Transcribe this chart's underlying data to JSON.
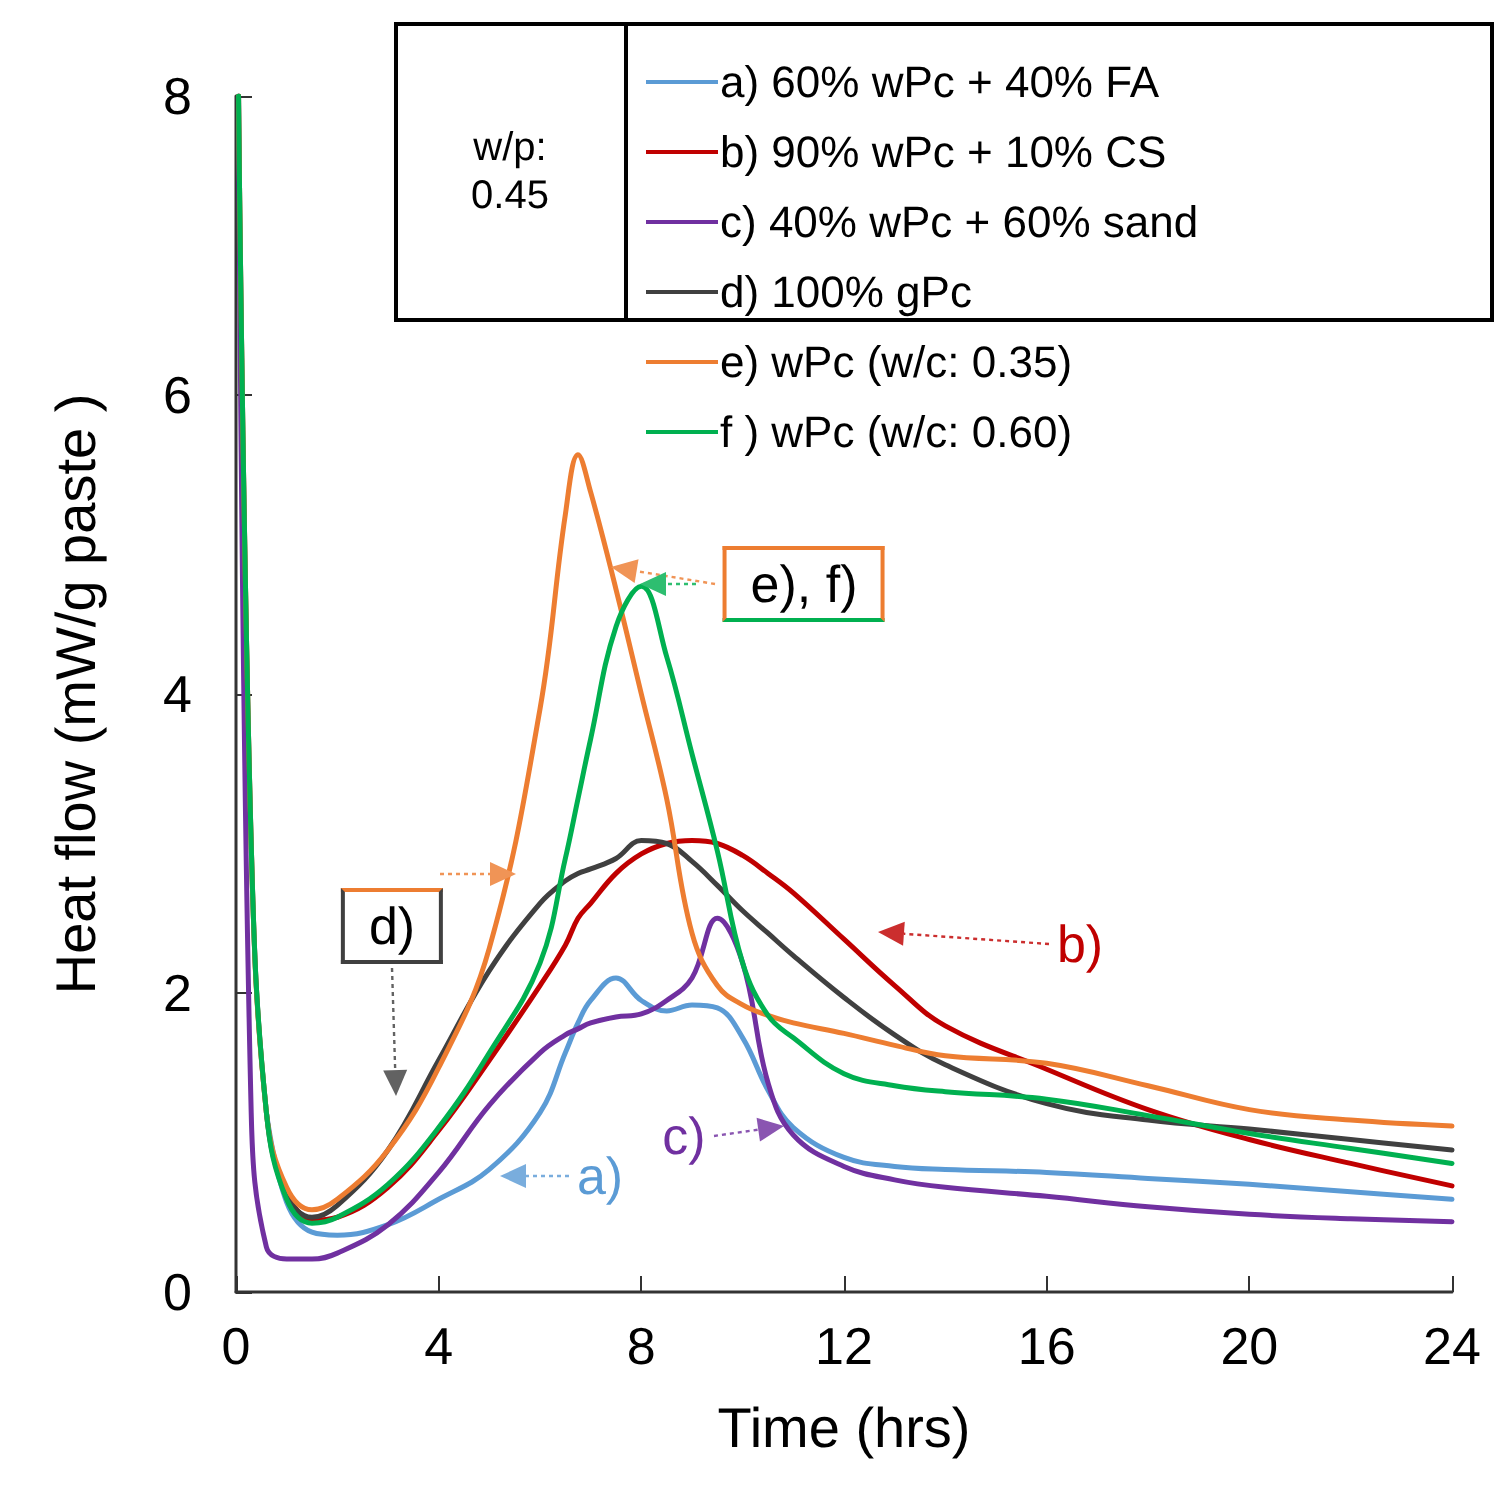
{
  "chart_data": {
    "type": "line",
    "xlabel": "Time (hrs)",
    "ylabel": "Heat flow (mW/g paste )",
    "legend_title": "w/p: 0.45",
    "legend": "top right",
    "grid": false,
    "marker": "none",
    "line_style": "solid",
    "x": [
      0.05,
      0.3,
      0.6,
      1,
      1.5,
      2,
      3,
      4,
      5,
      6,
      6.5,
      6.75,
      7,
      7.5,
      8,
      8.5,
      9,
      9.5,
      10,
      10.5,
      11,
      12,
      13,
      14,
      16,
      18,
      20,
      22,
      24
    ],
    "xlim": [
      0,
      24
    ],
    "xticks": [
      0,
      4,
      8,
      12,
      16,
      20,
      24
    ],
    "ylim": [
      0,
      8
    ],
    "yticks": [
      0,
      2,
      4,
      6,
      8
    ],
    "series": [
      {
        "name": "a) 60% wPc + 40% FA",
        "color": "#5b9bd5",
        "values": [
          null,
          null,
          1.2,
          0.6,
          0.4,
          0.38,
          0.45,
          0.62,
          0.82,
          1.2,
          1.6,
          1.8,
          1.95,
          2.1,
          1.95,
          1.88,
          1.92,
          1.9,
          1.7,
          1.35,
          1.1,
          0.9,
          0.84,
          0.82,
          0.8,
          0.76,
          0.72,
          0.67,
          0.62
        ]
      },
      {
        "name": "b) 90% wPc + 10% CS",
        "color": "#c00000",
        "values": [
          null,
          null,
          null,
          0.65,
          0.48,
          0.5,
          0.7,
          1.08,
          1.55,
          2.05,
          2.32,
          2.5,
          2.6,
          2.8,
          2.93,
          3.0,
          3.02,
          3.0,
          2.92,
          2.8,
          2.67,
          2.36,
          2.05,
          1.78,
          1.49,
          1.22,
          1.02,
          0.86,
          0.71
        ]
      },
      {
        "name": "c) 40% wPc + 60% sand",
        "color": "#7030a0",
        "values": [
          8,
          1.2,
          0.3,
          0.22,
          0.22,
          0.26,
          0.45,
          0.8,
          1.25,
          1.6,
          1.72,
          1.76,
          1.8,
          1.84,
          1.86,
          1.95,
          2.1,
          2.5,
          2.2,
          1.4,
          1.05,
          0.84,
          0.75,
          0.7,
          0.64,
          0.57,
          0.52,
          0.49,
          0.47
        ]
      },
      {
        "name": "d) 100% gPc",
        "color": "#404040",
        "values": [
          8,
          3.0,
          1.2,
          0.65,
          0.5,
          0.58,
          0.95,
          1.55,
          2.15,
          2.6,
          2.75,
          2.8,
          2.83,
          2.9,
          3.02,
          3.0,
          2.88,
          2.72,
          2.55,
          2.4,
          2.25,
          1.97,
          1.72,
          1.52,
          1.26,
          1.15,
          1.09,
          1.02,
          0.95
        ]
      },
      {
        "name": "e) wPc (w/c: 0.35)",
        "color": "#ed7d31",
        "values": [
          8,
          3.0,
          1.2,
          0.7,
          0.55,
          0.62,
          0.95,
          1.5,
          2.3,
          3.9,
          5.2,
          5.6,
          5.35,
          4.7,
          4.0,
          3.3,
          2.4,
          2.05,
          1.92,
          1.85,
          1.8,
          1.73,
          1.65,
          1.58,
          1.53,
          1.38,
          1.22,
          1.15,
          1.11
        ]
      },
      {
        "name": "f ) wPc (w/c: 0.60)",
        "color": "#00b050",
        "values": [
          8,
          3.0,
          1.2,
          0.62,
          0.46,
          0.5,
          0.72,
          1.1,
          1.6,
          2.2,
          2.9,
          3.3,
          3.7,
          4.45,
          4.72,
          4.25,
          3.6,
          2.95,
          2.2,
          1.85,
          1.7,
          1.46,
          1.38,
          1.34,
          1.29,
          1.18,
          1.06,
          0.96,
          0.86
        ]
      }
    ],
    "annotations": [
      "a)",
      "b)",
      "c)",
      "d)",
      {
        "text": "e), f)",
        "x": 7.4,
        "y": 4.85
      }
    ]
  }
}
